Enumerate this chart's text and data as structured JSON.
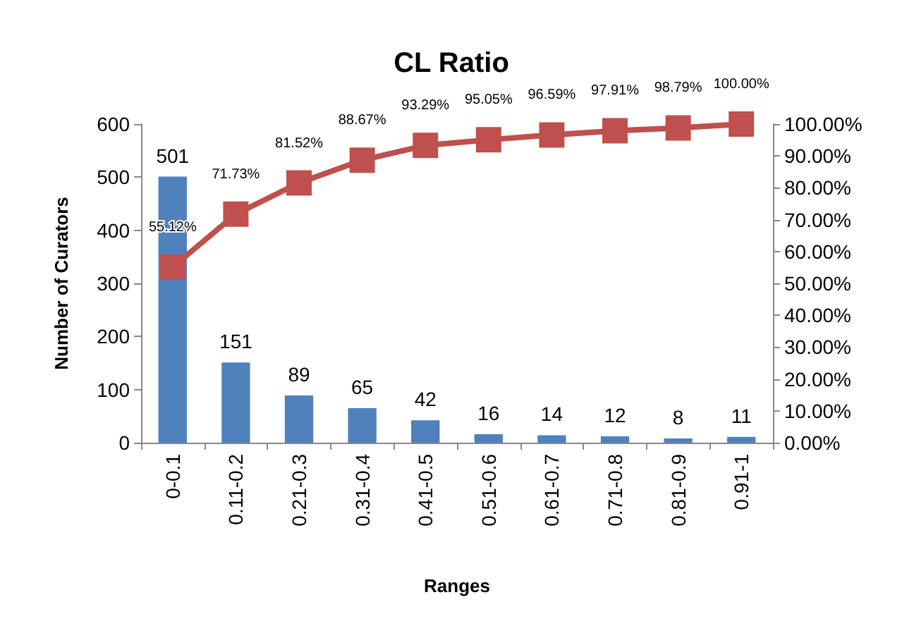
{
  "chart_data": {
    "type": "bar",
    "title": "CL Ratio",
    "xlabel": "Ranges",
    "ylabel": "Number of Curators",
    "categories": [
      "0-0.1",
      "0.11-0.2",
      "0.21-0.3",
      "0.31-0.4",
      "0.41-0.5",
      "0.51-0.6",
      "0.61-0.7",
      "0.71-0.8",
      "0.81-0.9",
      "0.91-1"
    ],
    "series": [
      {
        "color": "#4f81bd",
        "values": [
          501,
          151,
          89,
          65,
          42,
          16,
          14,
          12,
          8,
          11
        ],
        "value_labels": [
          "501",
          "151",
          "89",
          "65",
          "42",
          "16",
          "14",
          "12",
          "8",
          "11"
        ]
      },
      {
        "type": "line",
        "axis": "y2",
        "color": "#c0504d",
        "marker": "square",
        "values": [
          55.12,
          71.73,
          81.52,
          88.67,
          93.29,
          95.05,
          96.59,
          97.91,
          98.79,
          100.0
        ],
        "value_labels": [
          "55.12%",
          "71.73%",
          "81.52%",
          "88.67%",
          "93.29%",
          "95.05%",
          "96.59%",
          "97.91%",
          "98.79%",
          "100.00%"
        ]
      }
    ],
    "ylim": [
      0,
      600
    ],
    "yticks": [
      0,
      100,
      200,
      300,
      400,
      500,
      600
    ],
    "y2lim": [
      0,
      100
    ],
    "y2ticks": [
      {
        "value": 0,
        "label": "0.00%"
      },
      {
        "value": 10,
        "label": "10.00%"
      },
      {
        "value": 20,
        "label": "20.00%"
      },
      {
        "value": 30,
        "label": "30.00%"
      },
      {
        "value": 40,
        "label": "40.00%"
      },
      {
        "value": 50,
        "label": "50.00%"
      },
      {
        "value": 60,
        "label": "60.00%"
      },
      {
        "value": 70,
        "label": "70.00%"
      },
      {
        "value": 80,
        "label": "80.00%"
      },
      {
        "value": 90,
        "label": "90.00%"
      },
      {
        "value": 100,
        "label": "100.00%"
      }
    ],
    "grid": false
  }
}
